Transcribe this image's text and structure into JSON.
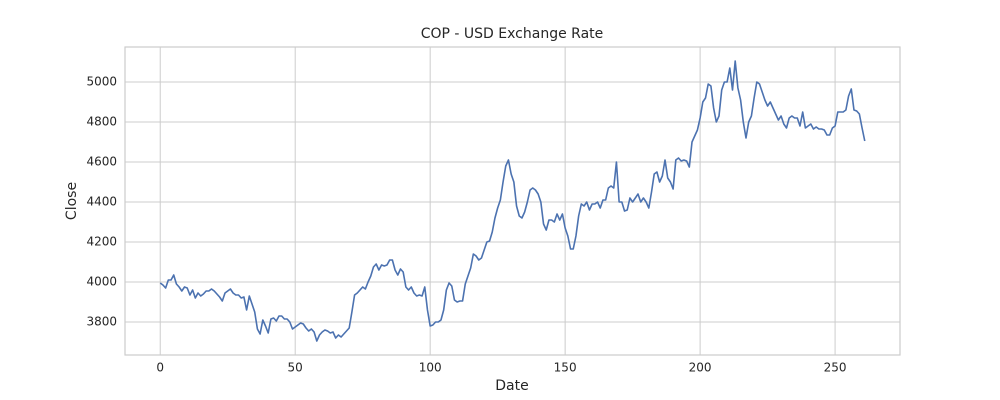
{
  "chart_data": {
    "type": "line",
    "title": "COP - USD Exchange Rate",
    "x_label": "Date",
    "y_label": "Close",
    "color": "#4c72b0",
    "grid": true,
    "xlim": [
      -13.05,
      274.05
    ],
    "ylim": [
      3635,
      5175
    ],
    "xticks": [
      0,
      50,
      100,
      150,
      200,
      250
    ],
    "yticks": [
      3800,
      4000,
      4200,
      4400,
      4600,
      4800,
      5000
    ],
    "x": [
      0,
      1,
      2,
      3,
      4,
      5,
      6,
      7,
      8,
      9,
      10,
      11,
      12,
      13,
      14,
      15,
      16,
      17,
      18,
      19,
      20,
      21,
      22,
      23,
      24,
      25,
      26,
      27,
      28,
      29,
      30,
      31,
      32,
      33,
      34,
      35,
      36,
      37,
      38,
      39,
      40,
      41,
      42,
      43,
      44,
      45,
      46,
      47,
      48,
      49,
      50,
      51,
      52,
      53,
      54,
      55,
      56,
      57,
      58,
      59,
      60,
      61,
      62,
      63,
      64,
      65,
      66,
      67,
      68,
      69,
      70,
      71,
      72,
      73,
      74,
      75,
      76,
      77,
      78,
      79,
      80,
      81,
      82,
      83,
      84,
      85,
      86,
      87,
      88,
      89,
      90,
      91,
      92,
      93,
      94,
      95,
      96,
      97,
      98,
      99,
      100,
      101,
      102,
      103,
      104,
      105,
      106,
      107,
      108,
      109,
      110,
      111,
      112,
      113,
      114,
      115,
      116,
      117,
      118,
      119,
      120,
      121,
      122,
      123,
      124,
      125,
      126,
      127,
      128,
      129,
      130,
      131,
      132,
      133,
      134,
      135,
      136,
      137,
      138,
      139,
      140,
      141,
      142,
      143,
      144,
      145,
      146,
      147,
      148,
      149,
      150,
      151,
      152,
      153,
      154,
      155,
      156,
      157,
      158,
      159,
      160,
      161,
      162,
      163,
      164,
      165,
      166,
      167,
      168,
      169,
      170,
      171,
      172,
      173,
      174,
      175,
      176,
      177,
      178,
      179,
      180,
      181,
      182,
      183,
      184,
      185,
      186,
      187,
      188,
      189,
      190,
      191,
      192,
      193,
      194,
      195,
      196,
      197,
      198,
      199,
      200,
      201,
      202,
      203,
      204,
      205,
      206,
      207,
      208,
      209,
      210,
      211,
      212,
      213,
      214,
      215,
      216,
      217,
      218,
      219,
      220,
      221,
      222,
      223,
      224,
      225,
      226,
      227,
      228,
      229,
      230,
      231,
      232,
      233,
      234,
      235,
      236,
      237,
      238,
      239,
      240,
      241,
      242,
      243,
      244,
      245,
      246,
      247,
      248,
      249,
      250,
      251,
      252,
      253,
      254,
      255,
      256,
      257,
      258,
      259,
      260,
      261
    ],
    "values": [
      3995,
      3985,
      3970,
      4010,
      4010,
      4035,
      3990,
      3975,
      3955,
      3975,
      3970,
      3935,
      3960,
      3920,
      3945,
      3930,
      3940,
      3955,
      3955,
      3965,
      3955,
      3940,
      3925,
      3905,
      3945,
      3955,
      3965,
      3945,
      3935,
      3935,
      3920,
      3925,
      3860,
      3930,
      3890,
      3850,
      3765,
      3740,
      3810,
      3780,
      3745,
      3815,
      3820,
      3805,
      3830,
      3830,
      3815,
      3815,
      3800,
      3765,
      3775,
      3785,
      3795,
      3790,
      3770,
      3755,
      3765,
      3750,
      3705,
      3735,
      3750,
      3760,
      3755,
      3745,
      3750,
      3720,
      3735,
      3725,
      3740,
      3755,
      3770,
      3850,
      3935,
      3945,
      3960,
      3975,
      3965,
      4000,
      4030,
      4075,
      4090,
      4060,
      4085,
      4080,
      4085,
      4110,
      4110,
      4060,
      4035,
      4065,
      4050,
      3975,
      3960,
      3975,
      3945,
      3930,
      3935,
      3930,
      3975,
      3860,
      3780,
      3785,
      3800,
      3800,
      3810,
      3860,
      3960,
      3995,
      3980,
      3910,
      3900,
      3905,
      3905,
      3990,
      4030,
      4070,
      4140,
      4130,
      4110,
      4120,
      4160,
      4200,
      4205,
      4250,
      4320,
      4370,
      4410,
      4500,
      4580,
      4610,
      4540,
      4500,
      4380,
      4330,
      4320,
      4350,
      4400,
      4460,
      4470,
      4460,
      4440,
      4400,
      4290,
      4260,
      4310,
      4310,
      4300,
      4340,
      4310,
      4340,
      4270,
      4230,
      4165,
      4165,
      4230,
      4330,
      4390,
      4380,
      4400,
      4360,
      4390,
      4390,
      4400,
      4370,
      4410,
      4410,
      4470,
      4480,
      4470,
      4600,
      4400,
      4400,
      4355,
      4360,
      4420,
      4400,
      4420,
      4440,
      4400,
      4420,
      4400,
      4370,
      4450,
      4540,
      4550,
      4500,
      4530,
      4610,
      4520,
      4500,
      4465,
      4610,
      4620,
      4605,
      4610,
      4605,
      4575,
      4700,
      4730,
      4760,
      4820,
      4900,
      4920,
      4990,
      4980,
      4870,
      4800,
      4830,
      4960,
      5000,
      5000,
      5070,
      4960,
      5105,
      4970,
      4910,
      4800,
      4720,
      4800,
      4830,
      4920,
      5000,
      4990,
      4950,
      4910,
      4880,
      4900,
      4870,
      4840,
      4810,
      4830,
      4790,
      4770,
      4820,
      4830,
      4820,
      4820,
      4780,
      4850,
      4770,
      4780,
      4790,
      4765,
      4775,
      4765,
      4765,
      4760,
      4735,
      4735,
      4770,
      4780,
      4850,
      4850,
      4850,
      4860,
      4930,
      4965,
      4860,
      4855,
      4840,
      4770,
      4705
    ]
  }
}
